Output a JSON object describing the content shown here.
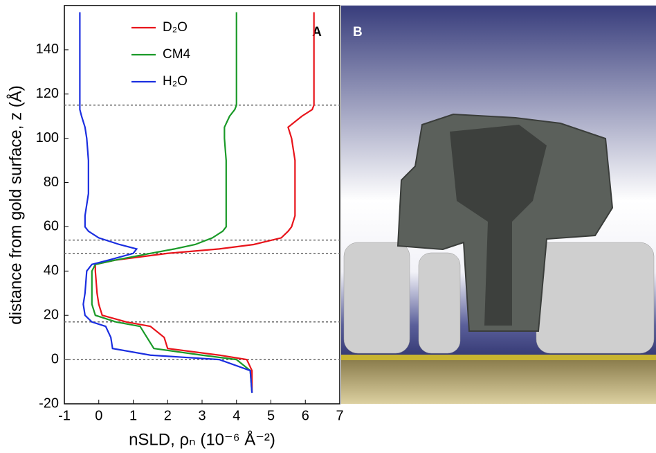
{
  "chart_data": {
    "type": "line",
    "xlabel": "nSLD, ρₙ (10⁻⁶ Å⁻²)",
    "ylabel": "distance from gold surface, z (Å)",
    "annotations": [
      "A"
    ],
    "image_panel": {
      "label": "B"
    },
    "xlim": [
      -1,
      7
    ],
    "xticks": [
      -1,
      0,
      1,
      2,
      3,
      4,
      5,
      6,
      7
    ],
    "ylim": [
      -20,
      160
    ],
    "yticks": [
      -20,
      0,
      20,
      40,
      60,
      80,
      100,
      120,
      140
    ],
    "hlines": [
      0,
      17,
      48,
      54,
      115
    ],
    "y": [
      -15,
      -5,
      0,
      2,
      5,
      10,
      15,
      17,
      20,
      25,
      30,
      40,
      43,
      45,
      48,
      50,
      52,
      55,
      58,
      60,
      65,
      75,
      90,
      100,
      105,
      110,
      113,
      115,
      120,
      140,
      157
    ],
    "series": [
      {
        "name": "D₂O",
        "color": "#e8141b",
        "values": [
          4.45,
          4.45,
          4.3,
          3.5,
          2.0,
          1.9,
          1.5,
          0.8,
          0.1,
          0.0,
          -0.05,
          -0.1,
          -0.1,
          0.5,
          2.0,
          3.5,
          4.5,
          5.3,
          5.5,
          5.6,
          5.7,
          5.7,
          5.7,
          5.6,
          5.5,
          5.9,
          6.2,
          6.25,
          6.25,
          6.25,
          6.25
        ]
      },
      {
        "name": "CM4",
        "color": "#1a9a28",
        "values": [
          4.45,
          4.4,
          4.0,
          3.0,
          1.6,
          1.4,
          1.2,
          0.5,
          -0.1,
          -0.2,
          -0.2,
          -0.2,
          -0.1,
          0.5,
          1.5,
          2.2,
          2.8,
          3.3,
          3.6,
          3.7,
          3.7,
          3.7,
          3.7,
          3.65,
          3.65,
          3.8,
          3.95,
          4.0,
          4.0,
          4.0,
          4.0
        ]
      },
      {
        "name": "H₂O",
        "color": "#1a2ee0",
        "values": [
          4.45,
          4.4,
          3.5,
          1.5,
          0.4,
          0.35,
          0.2,
          -0.2,
          -0.4,
          -0.45,
          -0.4,
          -0.35,
          -0.2,
          0.3,
          1.0,
          1.1,
          0.6,
          0.0,
          -0.3,
          -0.4,
          -0.4,
          -0.3,
          -0.3,
          -0.35,
          -0.4,
          -0.5,
          -0.55,
          -0.55,
          -0.55,
          -0.55,
          -0.55
        ]
      }
    ]
  }
}
